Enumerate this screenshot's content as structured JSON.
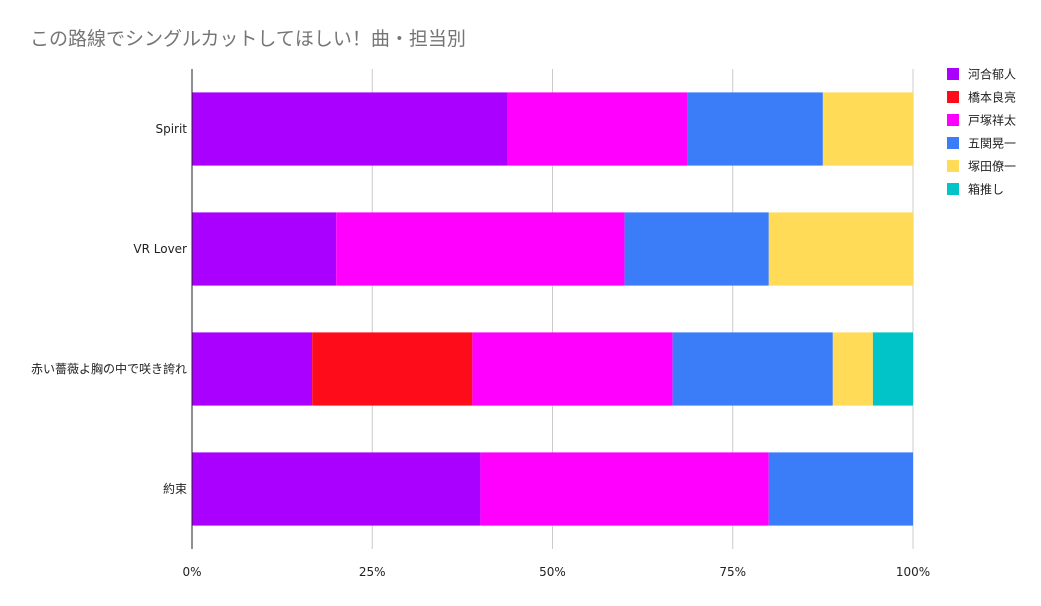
{
  "chart_data": {
    "type": "bar",
    "orientation": "horizontal",
    "stacked": "percent",
    "title": "この路線でシングルカットしてほしい！曲・担当別",
    "xlabel": "",
    "ylabel": "",
    "xlim": [
      0,
      100
    ],
    "x_ticks": [
      "0%",
      "25%",
      "50%",
      "75%",
      "100%"
    ],
    "grid": true,
    "legend_position": "right",
    "categories": [
      "Spirit",
      "VR Lover",
      "赤い薔薇よ胸の中で咲き誇れ",
      "約束"
    ],
    "series": [
      {
        "name": "河合郁人",
        "color": "#aa00ff",
        "values": [
          43.75,
          20,
          16.67,
          40
        ]
      },
      {
        "name": "橋本良亮",
        "color": "#ff0c1b",
        "values": [
          0,
          0,
          22.22,
          0
        ]
      },
      {
        "name": "戸塚祥太",
        "color": "#ff00ff",
        "values": [
          25,
          40,
          27.78,
          40
        ]
      },
      {
        "name": "五関晃一",
        "color": "#3b7df8",
        "values": [
          18.75,
          20,
          22.22,
          20
        ]
      },
      {
        "name": "塚田僚一",
        "color": "#ffdb58",
        "values": [
          12.5,
          20,
          5.56,
          0
        ]
      },
      {
        "name": "箱推し",
        "color": "#00c4c8",
        "values": [
          0,
          0,
          5.56,
          0
        ]
      }
    ]
  }
}
